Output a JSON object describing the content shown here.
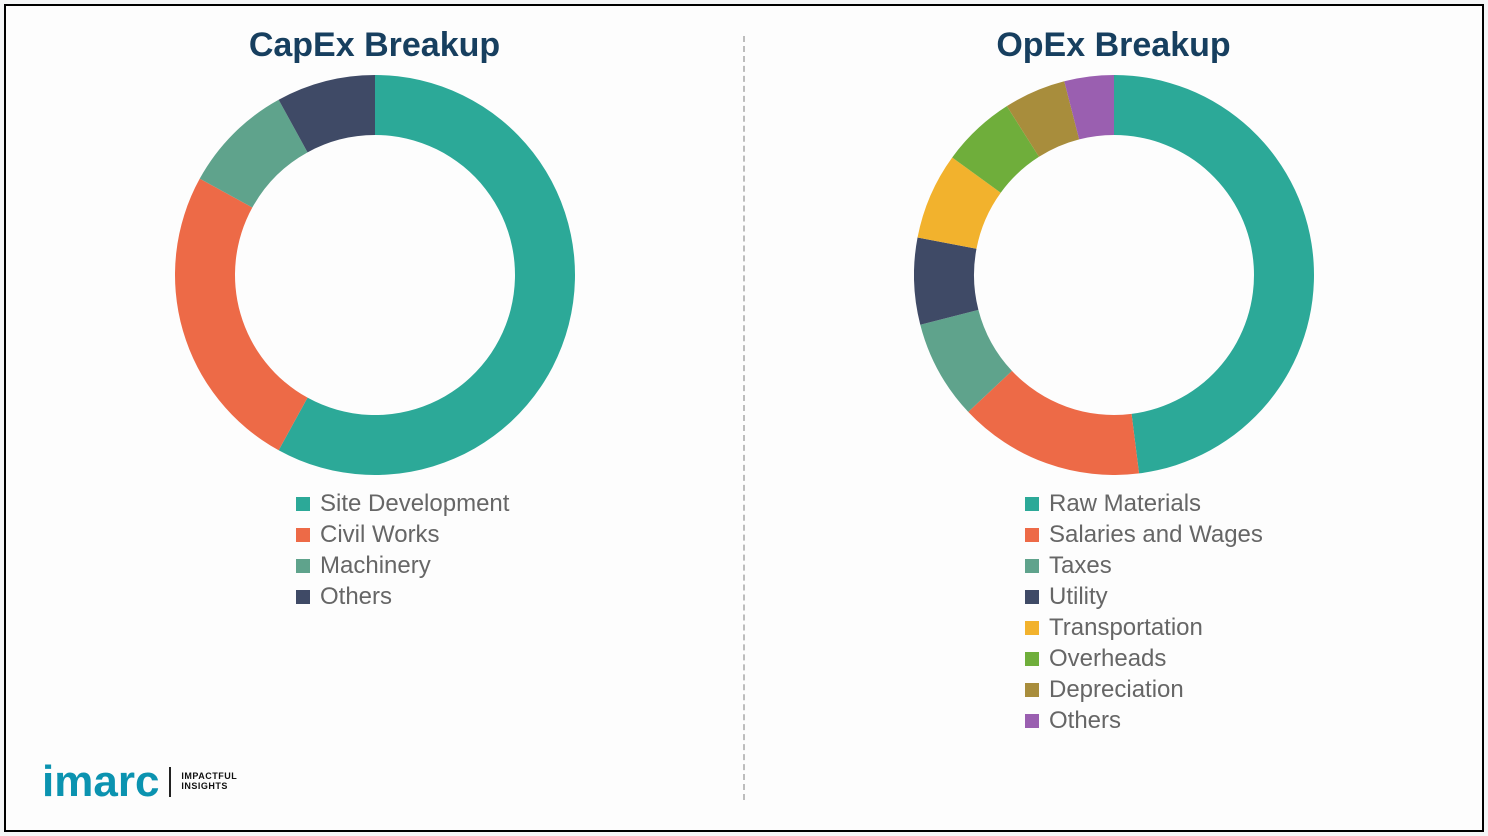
{
  "logo": {
    "brand": "imarc",
    "tagline_line1": "IMPACTFUL",
    "tagline_line2": "INSIGHTS",
    "brand_color": "#0b93b0"
  },
  "divider_color": "#bdbdbd",
  "background_color": "#fdfdfd",
  "frame_border_color": "#000000",
  "capex": {
    "title": "CapEx Breakup",
    "title_color": "#173f5f",
    "title_fontsize": 34,
    "type": "donut",
    "inner_radius_pct": 70,
    "outer_radius_pct": 100,
    "series": [
      {
        "label": "Site Development",
        "value": 58,
        "color": "#2ca998"
      },
      {
        "label": "Civil Works",
        "value": 25,
        "color": "#ed6a47"
      },
      {
        "label": "Machinery",
        "value": 9,
        "color": "#5fa38c"
      },
      {
        "label": "Others",
        "value": 8,
        "color": "#3f4a66"
      }
    ],
    "legend_fontsize": 24,
    "legend_text_color": "#666666"
  },
  "opex": {
    "title": "OpEx Breakup",
    "title_color": "#173f5f",
    "title_fontsize": 34,
    "type": "donut",
    "inner_radius_pct": 70,
    "outer_radius_pct": 100,
    "series": [
      {
        "label": "Raw Materials",
        "value": 48,
        "color": "#2ca998"
      },
      {
        "label": "Salaries and Wages",
        "value": 15,
        "color": "#ed6a47"
      },
      {
        "label": "Taxes",
        "value": 8,
        "color": "#5fa38c"
      },
      {
        "label": "Utility",
        "value": 7,
        "color": "#3f4a66"
      },
      {
        "label": "Transportation",
        "value": 7,
        "color": "#f2b22d"
      },
      {
        "label": "Overheads",
        "value": 6,
        "color": "#6fae3b"
      },
      {
        "label": "Depreciation",
        "value": 5,
        "color": "#a88d3c"
      },
      {
        "label": "Others",
        "value": 4,
        "color": "#9a5fb0"
      }
    ],
    "legend_fontsize": 24,
    "legend_text_color": "#666666"
  }
}
